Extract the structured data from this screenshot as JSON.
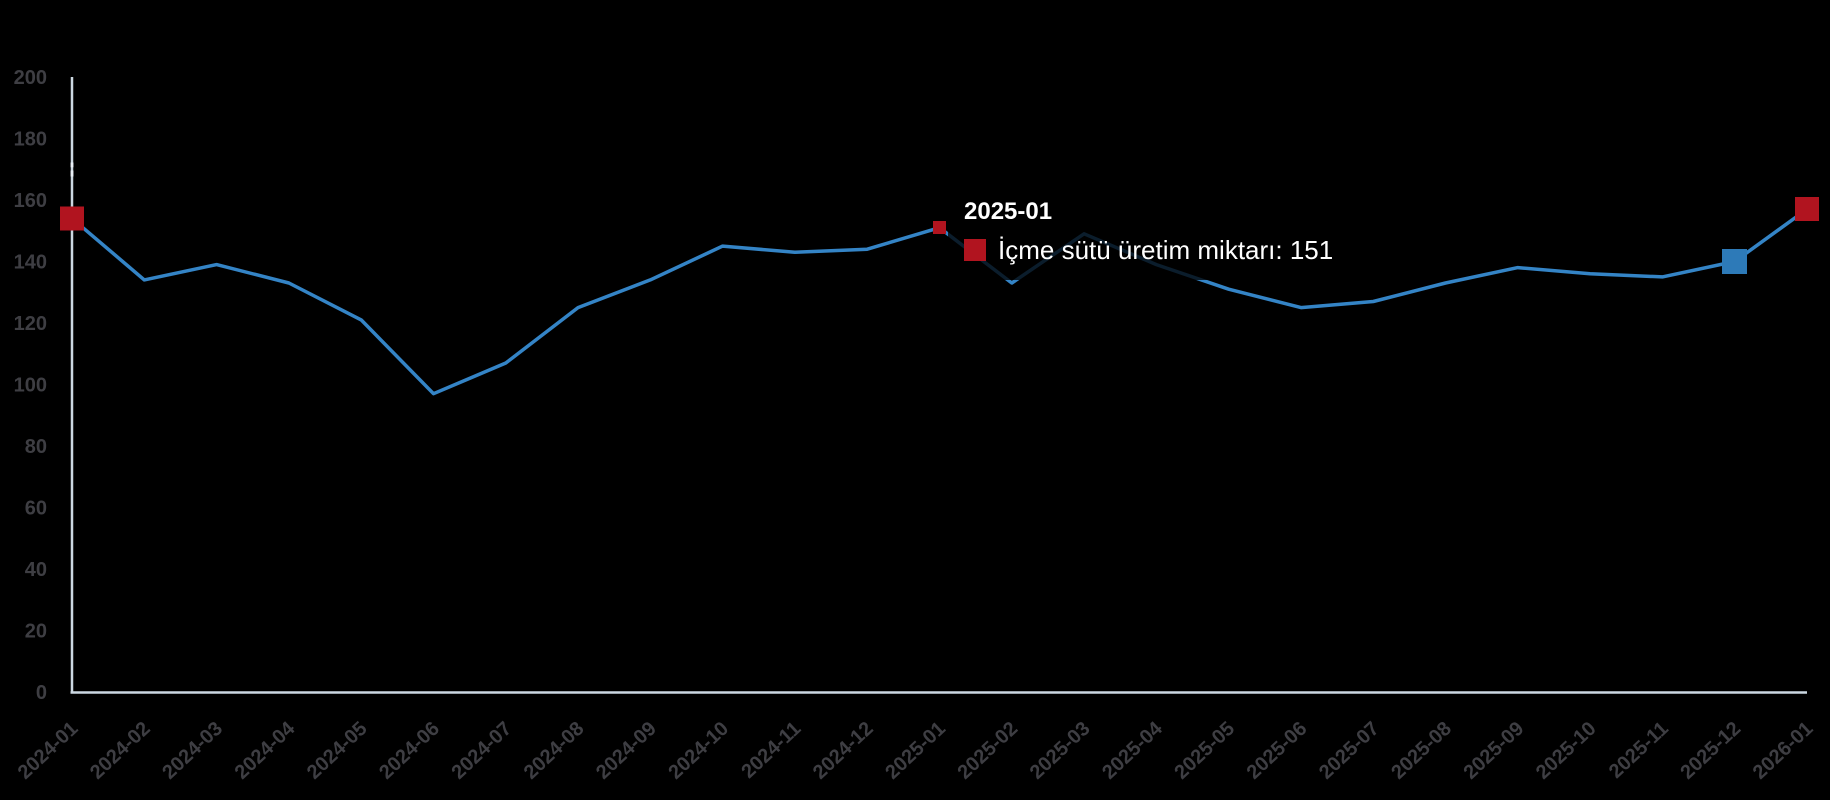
{
  "chart_data": {
    "type": "line",
    "x": [
      "2024-01",
      "2024-02",
      "2024-03",
      "2024-04",
      "2024-05",
      "2024-06",
      "2024-07",
      "2024-08",
      "2024-09",
      "2024-10",
      "2024-11",
      "2024-12",
      "2025-01",
      "2025-02",
      "2025-03",
      "2025-04",
      "2025-05",
      "2025-06",
      "2025-07",
      "2025-08",
      "2025-09",
      "2025-10",
      "2025-11",
      "2025-12",
      "2026-01"
    ],
    "series": [
      {
        "name": "İçme sütü üretim miktarı",
        "color": "#3484c6",
        "values": [
          154,
          134,
          139,
          133,
          121,
          97,
          107,
          125,
          134,
          145,
          143,
          144,
          151,
          133,
          149,
          139,
          131,
          125,
          127,
          133,
          138,
          136,
          135,
          140,
          157
        ]
      }
    ],
    "ylim": [
      0,
      200
    ],
    "y_ticks": [
      0,
      20,
      40,
      60,
      80,
      100,
      120,
      140,
      160,
      180,
      200
    ],
    "xlabel": "",
    "ylabel": "",
    "title": "",
    "grid": false,
    "legend_position": "none",
    "background": "#000000"
  },
  "axes": {
    "line_color": "#ccd8e2",
    "label_color": "#3e3e43",
    "axis_dash_marks_color": "#e9eff5"
  },
  "point_markers": [
    {
      "x": "2024-01",
      "shape": "square",
      "size": 24,
      "color": "#b1141f"
    },
    {
      "x": "2025-01",
      "shape": "square",
      "size": 13,
      "color": "#b1141f",
      "role": "hovered-point"
    },
    {
      "x": "2025-12",
      "shape": "square",
      "size": 25,
      "color": "#2d7ab8"
    },
    {
      "x": "2026-01",
      "shape": "square",
      "size": 24,
      "color": "#b1141f"
    }
  ],
  "tooltip": {
    "title": "2025-01",
    "series_name": "İçme sütü üretim miktarı",
    "value": "151",
    "text": "İçme sütü üretim miktarı: 151",
    "swatch_color": "#b1141f"
  }
}
